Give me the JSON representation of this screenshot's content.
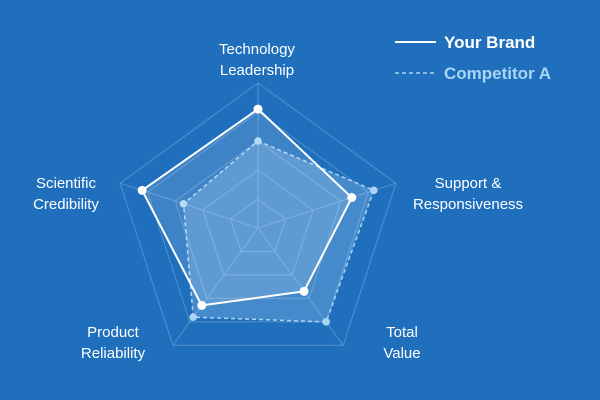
{
  "colors": {
    "background": "#1f6fbd",
    "grid": "#5590cc",
    "your_brand": "#ffffff",
    "competitor": "#a9d4f4"
  },
  "chart_data": {
    "type": "radar",
    "axes": [
      "Technology Leadership",
      "Support & Responsiveness",
      "Total Value",
      "Product Reliability",
      "Scientific Credibility"
    ],
    "axis_label_lines": [
      [
        "Technology",
        "Leadership"
      ],
      [
        "Support &",
        "Responsiveness"
      ],
      [
        "Total",
        "Value"
      ],
      [
        "Product",
        "Reliability"
      ],
      [
        "Scientific",
        "Credibility"
      ]
    ],
    "range": [
      0,
      5
    ],
    "grid_levels": 5,
    "series": [
      {
        "name": "Your Brand",
        "values": [
          4.1,
          3.4,
          2.7,
          3.3,
          4.2
        ],
        "style": "solid"
      },
      {
        "name": "Competitor A",
        "values": [
          3.0,
          4.2,
          4.0,
          3.8,
          2.7
        ],
        "style": "dashed"
      }
    ],
    "legend": "top-right"
  }
}
